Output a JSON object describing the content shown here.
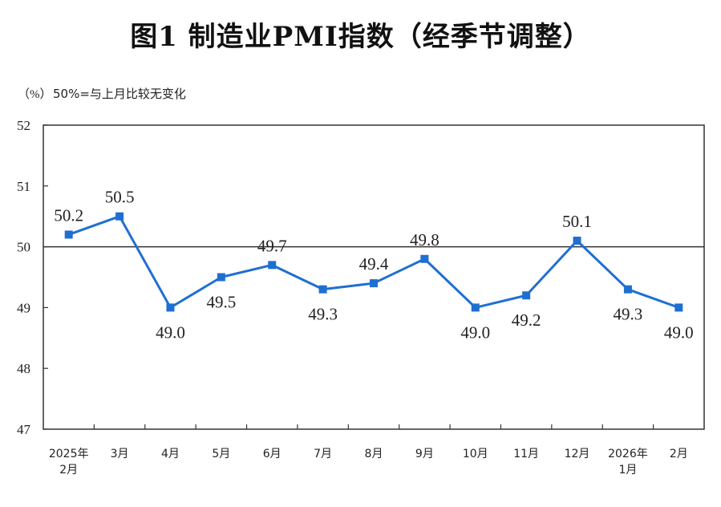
{
  "header": {
    "title": "图1  制造业PMI指数（经季节调整）",
    "unit": "（%）",
    "note": "50%=与上月比较无变化"
  },
  "colors": {
    "series": "#1f6fd1",
    "axis": "#333333",
    "reference": "#333333"
  },
  "chart_data": {
    "type": "line",
    "title": "图1  制造业PMI指数（经季节调整）",
    "ylabel": "（%）",
    "xlabel": "",
    "ylim": [
      47,
      52
    ],
    "yticks": [
      52,
      51,
      50,
      49,
      48,
      47
    ],
    "reference_line": 50,
    "grid": false,
    "categories": [
      [
        "2025年",
        "2月"
      ],
      [
        "3月"
      ],
      [
        "4月"
      ],
      [
        "5月"
      ],
      [
        "6月"
      ],
      [
        "7月"
      ],
      [
        "8月"
      ],
      [
        "9月"
      ],
      [
        "10月"
      ],
      [
        "11月"
      ],
      [
        "12月"
      ],
      [
        "2026年",
        "1月"
      ],
      [
        "2月"
      ]
    ],
    "series": [
      {
        "name": "制造业PMI",
        "values": [
          50.2,
          50.5,
          49.0,
          49.5,
          49.7,
          49.3,
          49.4,
          49.8,
          49.0,
          49.2,
          50.1,
          49.3,
          49.0
        ],
        "labels": [
          "50.2",
          "50.5",
          "49.0",
          "49.5",
          "49.7",
          "49.3",
          "49.4",
          "49.8",
          "49.0",
          "49.2",
          "50.1",
          "49.3",
          "49.0"
        ],
        "label_position": [
          "above",
          "above",
          "below",
          "below",
          "above",
          "below",
          "above",
          "above",
          "below",
          "below",
          "above",
          "below",
          "below"
        ]
      }
    ]
  }
}
